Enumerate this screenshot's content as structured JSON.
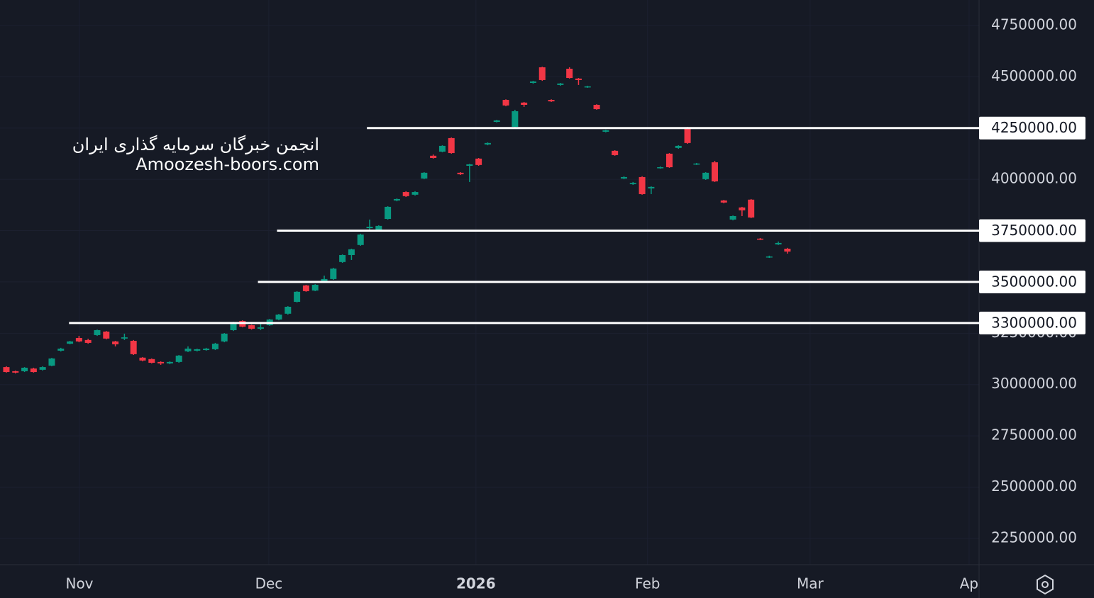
{
  "chart_data": {
    "type": "candlestick",
    "watermark": [
      "انجمن خبرگان سرمایه گذاری ایران",
      "Amoozesh-boors.com"
    ],
    "up_color": "#089981",
    "down_color": "#f23645",
    "xlim": [
      -0.7,
      107.1
    ],
    "xticks": [
      {
        "value": 8.05,
        "label": "Nov"
      },
      {
        "value": 28.9,
        "label": "Dec"
      },
      {
        "value": 51.7,
        "label": "2026"
      },
      {
        "value": 70.6,
        "label": "Feb"
      },
      {
        "value": 88.5,
        "label": "Mar"
      },
      {
        "value": 106,
        "label": "Ap"
      }
    ],
    "ylim": [
      2122000,
      4874000
    ],
    "yticks": [
      {
        "value": 2250000,
        "label": "2250000.00"
      },
      {
        "value": 2500000,
        "label": "2500000.00"
      },
      {
        "value": 2750000,
        "label": "2750000.00"
      },
      {
        "value": 3000000,
        "label": "3000000.00"
      },
      {
        "value": 3250000,
        "label": "3250000.00"
      },
      {
        "value": 3500000,
        "label": "3500000.00"
      },
      {
        "value": 3750000,
        "label": "3750000.00"
      },
      {
        "value": 4000000,
        "label": "4000000.00"
      },
      {
        "value": 4250000,
        "label": "4250000.00"
      },
      {
        "value": 4500000,
        "label": "4500000.00"
      },
      {
        "value": 4750000,
        "label": "4750000.00"
      }
    ],
    "hlines": [
      {
        "value": 4250000,
        "label": "4250000.00",
        "x_start": 39.7
      },
      {
        "value": 3750000,
        "label": "3750000.00",
        "x_start": 29.8
      },
      {
        "value": 3500000,
        "label": "3500000.00",
        "x_start": 27.7
      },
      {
        "value": 3300000,
        "label": "3300000.00",
        "x_start": 6.9
      }
    ],
    "open": [
      3085000,
      3065000,
      3065000,
      3078000,
      3072000,
      3092000,
      3165000,
      3199000,
      3227000,
      3217000,
      3241000,
      3258000,
      3210000,
      3224000,
      3213000,
      3131000,
      3124000,
      3110000,
      3103000,
      3110000,
      3162000,
      3165000,
      3168000,
      3172000,
      3210000,
      3265000,
      3310000,
      3289000,
      3272000,
      3289000,
      3317000,
      3345000,
      3403000,
      3483000,
      3458000,
      3500000,
      3514000,
      3597000,
      3631000,
      3680000,
      3762000,
      3752000,
      3807000,
      3897000,
      3938000,
      3925000,
      4004000,
      4115000,
      4135000,
      4201000,
      4032000,
      4066000,
      4101000,
      4170000,
      4280000,
      4387000,
      4256000,
      4374000,
      4470000,
      4546000,
      4387000,
      4460000,
      4539000,
      4491000,
      4450000,
      4363000,
      4232000,
      4139000,
      4004000,
      3977000,
      4011000,
      3956000,
      4056000,
      4125000,
      4153000,
      4253000,
      4073000,
      4001000,
      4083000,
      3897000,
      3804000,
      3863000,
      3901000,
      3711000,
      3621000,
      3683000,
      3662000
    ],
    "high": [
      3089000,
      3068000,
      3085000,
      3082000,
      3089000,
      3130000,
      3179000,
      3213000,
      3237000,
      3223000,
      3268000,
      3261000,
      3213000,
      3248000,
      3217000,
      3134000,
      3127000,
      3113000,
      3113000,
      3144000,
      3186000,
      3175000,
      3179000,
      3203000,
      3251000,
      3306000,
      3313000,
      3292000,
      3296000,
      3320000,
      3344000,
      3382000,
      3455000,
      3486000,
      3489000,
      3531000,
      3569000,
      3634000,
      3662000,
      3735000,
      3804000,
      3776000,
      3869000,
      3907000,
      3942000,
      3942000,
      4035000,
      4121000,
      4166000,
      4204000,
      4035000,
      4076000,
      4104000,
      4180000,
      4290000,
      4390000,
      4339000,
      4377000,
      4480000,
      4549000,
      4390000,
      4470000,
      4546000,
      4494000,
      4456000,
      4366000,
      4242000,
      4142000,
      4015000,
      3987000,
      4015000,
      3966000,
      4063000,
      4128000,
      4166000,
      4256000,
      4080000,
      4035000,
      4090000,
      3900000,
      3824000,
      3866000,
      3904000,
      3714000,
      3628000,
      3697000,
      3666000
    ],
    "low": [
      3058000,
      3054000,
      3061000,
      3058000,
      3068000,
      3089000,
      3161000,
      3196000,
      3206000,
      3199000,
      3237000,
      3220000,
      3186000,
      3217000,
      3144000,
      3113000,
      3103000,
      3096000,
      3099000,
      3106000,
      3158000,
      3161000,
      3165000,
      3168000,
      3206000,
      3261000,
      3279000,
      3268000,
      3265000,
      3286000,
      3313000,
      3341000,
      3400000,
      3452000,
      3455000,
      3497000,
      3510000,
      3593000,
      3607000,
      3676000,
      3752000,
      3748000,
      3804000,
      3893000,
      3914000,
      3921000,
      4001000,
      4101000,
      4132000,
      4125000,
      4021000,
      3987000,
      4066000,
      4166000,
      4277000,
      4356000,
      4253000,
      4353000,
      4466000,
      4480000,
      4377000,
      4456000,
      4491000,
      4460000,
      4446000,
      4339000,
      4229000,
      4115000,
      4001000,
      3973000,
      3925000,
      3928000,
      4052000,
      4056000,
      4149000,
      4173000,
      4070000,
      3997000,
      3987000,
      3883000,
      3800000,
      3821000,
      3811000,
      3704000,
      3617000,
      3680000,
      3638000
    ],
    "close": [
      3061000,
      3058000,
      3082000,
      3061000,
      3085000,
      3127000,
      3175000,
      3210000,
      3210000,
      3203000,
      3265000,
      3224000,
      3196000,
      3230000,
      3148000,
      3117000,
      3106000,
      3103000,
      3110000,
      3141000,
      3175000,
      3172000,
      3175000,
      3199000,
      3248000,
      3303000,
      3282000,
      3272000,
      3279000,
      3317000,
      3341000,
      3379000,
      3452000,
      3455000,
      3486000,
      3514000,
      3565000,
      3631000,
      3659000,
      3731000,
      3769000,
      3773000,
      3866000,
      3904000,
      3918000,
      3938000,
      4032000,
      4104000,
      4163000,
      4128000,
      4025000,
      4073000,
      4070000,
      4177000,
      4287000,
      4360000,
      4332000,
      4363000,
      4477000,
      4484000,
      4380000,
      4467000,
      4494000,
      4484000,
      4453000,
      4342000,
      4239000,
      4118000,
      4011000,
      3983000,
      3928000,
      3963000,
      4059000,
      4059000,
      4163000,
      4177000,
      4077000,
      4032000,
      3990000,
      3887000,
      3821000,
      3849000,
      3814000,
      3707000,
      3624000,
      3690000,
      3648000
    ]
  }
}
